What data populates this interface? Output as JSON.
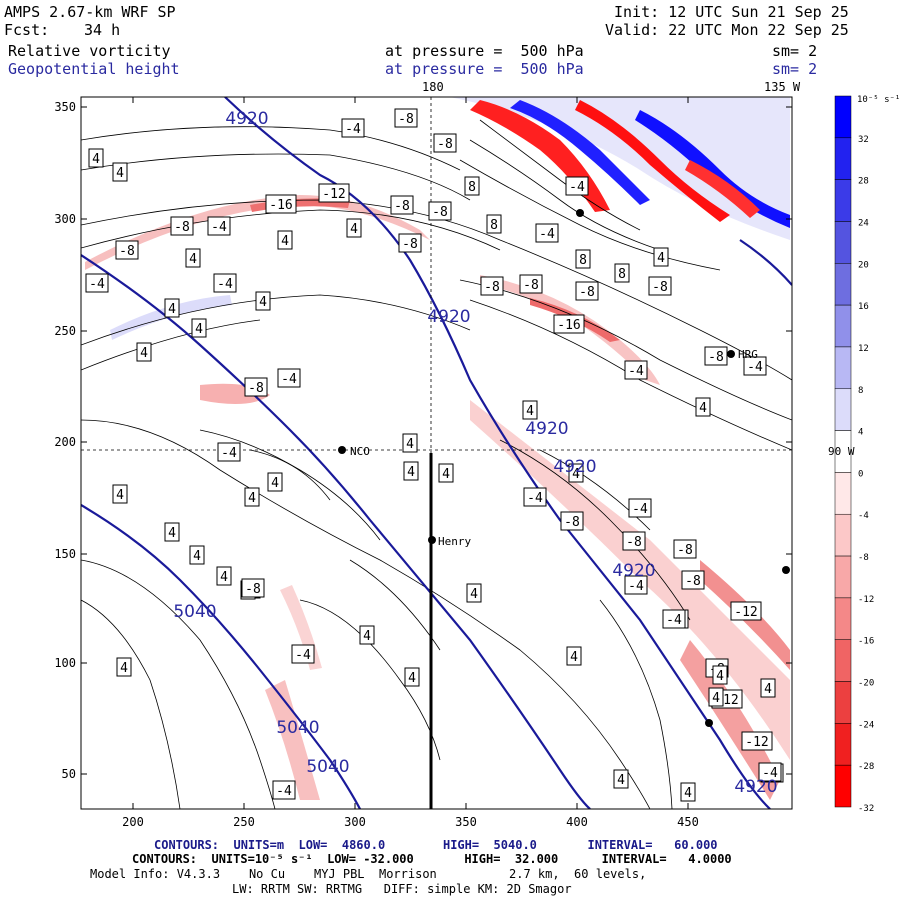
{
  "header": {
    "model": "AMPS 2.67-km WRF SP",
    "forecast_label": "Fcst:",
    "forecast_hours": "34 h",
    "init": "Init: 12 UTC Sun 21 Sep 25",
    "valid": "Valid: 22 UTC Mon 22 Sep 25",
    "field1_name": "Relative vorticity",
    "field1_level": "at pressure =  500 hPa",
    "field1_smooth": "sm= 2",
    "field2_name": "Geopotential height",
    "field2_level": "at pressure =  500 hPa",
    "field2_smooth": "sm= 2"
  },
  "map": {
    "meridian_top_label": "180",
    "meridian_top_label2": "135 W",
    "parallel_label": "90 W",
    "stations": [
      "NCO",
      "Henry",
      "HRG"
    ],
    "y_ticks": [
      "350",
      "300",
      "250",
      "200",
      "150",
      "100",
      "50"
    ],
    "x_ticks": [
      "200",
      "250",
      "300",
      "350",
      "400",
      "450"
    ],
    "height_labels": [
      "4920",
      "4920",
      "4920",
      "4920",
      "4920",
      "4920",
      "5040",
      "5040",
      "5040"
    ],
    "vort_labels": [
      "-4",
      "-8",
      "-8",
      "4",
      "4",
      "8",
      "-4",
      "-16",
      "-12",
      "-8",
      "-8",
      "-8",
      "-4",
      "4",
      "8",
      "4",
      "-8",
      "-4",
      "-8",
      "4",
      "8",
      "8",
      "4",
      "-4",
      "-8",
      "-8",
      "-16",
      "-8",
      "-4",
      "-8",
      "4",
      "4",
      "4",
      "-8",
      "-4",
      "-4",
      "4",
      "-4",
      "4",
      "4",
      "4",
      "-8",
      "-4",
      "-8",
      "-8",
      "-4",
      "4",
      "4",
      "-4",
      "4",
      "4",
      "4",
      "4",
      "4",
      "4",
      "4",
      "4",
      "-12",
      "-8",
      "-4",
      "-8",
      "-12",
      "-12",
      "-8",
      "4",
      "4",
      "-4",
      "4",
      "4",
      "-4",
      "4",
      "4",
      "4",
      "-8",
      "4",
      "4",
      "-4",
      "4",
      "4",
      "-4",
      "-8",
      "-4",
      "-4",
      "-4",
      "-8",
      "-8"
    ]
  },
  "colorbar": {
    "unit": "10⁻⁵ s⁻¹",
    "labels": [
      "32",
      "28",
      "24",
      "20",
      "16",
      "12",
      "8",
      "4",
      "0",
      "-4",
      "-8",
      "-12",
      "-16",
      "-20",
      "-24",
      "-28",
      "-32"
    ],
    "colors": [
      "#0000ff",
      "#2222f0",
      "#3b3be8",
      "#5454e0",
      "#6e6ee0",
      "#9090ea",
      "#b8b8f4",
      "#dcdcfa",
      "#ffffff",
      "#ffe8e8",
      "#fcc8c8",
      "#f8a8a8",
      "#f48888",
      "#f06464",
      "#ec4040",
      "#f02020",
      "#ff0000"
    ]
  },
  "footer": {
    "line1": "CONTOURS:  UNITS=m  LOW=  4860.0        HIGH=  5040.0       INTERVAL=   60.000",
    "line2": "CONTOURS:  UNITS=10⁻⁵ s⁻¹  LOW= -32.000       HIGH=  32.000      INTERVAL=   4.0000",
    "line3": "Model Info: V4.3.3    No Cu    MYJ PBL  Morrison          2.7 km,  60 levels,",
    "line4": "LW: RRTM SW: RRTMG   DIFF: simple KM: 2D Smagor"
  }
}
